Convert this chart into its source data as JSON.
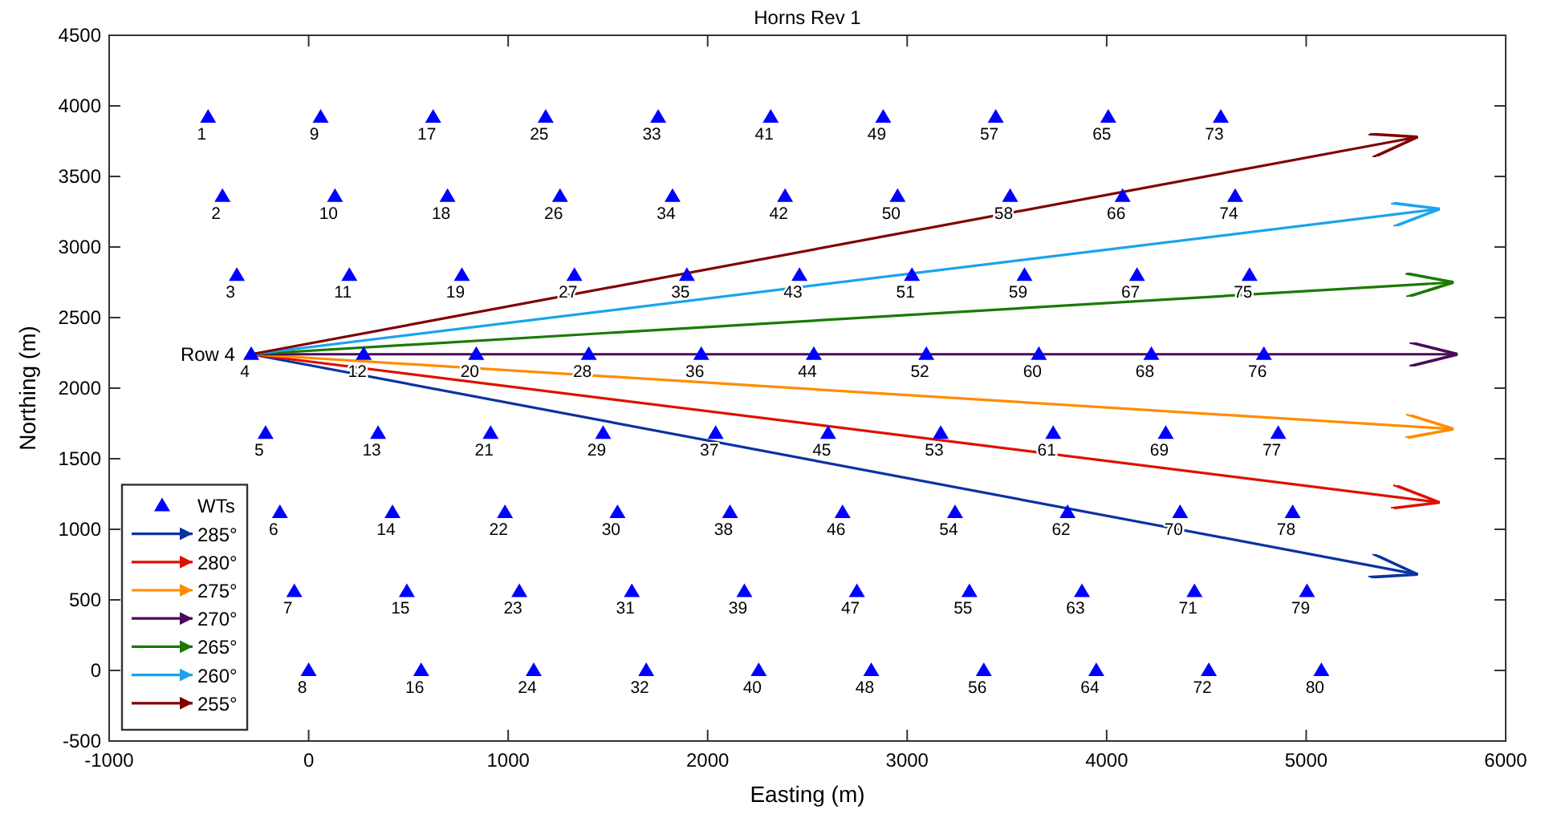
{
  "chart_data": {
    "type": "scatter",
    "title": "Horns Rev 1",
    "xlabel": "Easting (m)",
    "ylabel": "Northing (m)",
    "xlim": [
      -1000,
      6000
    ],
    "xticks": [
      -1000,
      0,
      1000,
      2000,
      3000,
      4000,
      5000,
      6000
    ],
    "ylim": [
      -500,
      4500
    ],
    "yticks": [
      -500,
      0,
      500,
      1000,
      1500,
      2000,
      2500,
      3000,
      3500,
      4000,
      4500
    ],
    "grid": false,
    "legend": "bottom left",
    "line_style": "solid",
    "series": [
      {
        "name": "WTs",
        "marker": "triangle",
        "color": "#0000ff",
        "x": [
          -504,
          -432,
          -360,
          -288,
          -216,
          -144,
          -72,
          0,
          60,
          132,
          204,
          276,
          348,
          420,
          492,
          564,
          624,
          696,
          768,
          840,
          912,
          984,
          1056,
          1128,
          1188,
          1260,
          1332,
          1404,
          1476,
          1548,
          1620,
          1692,
          1752,
          1824,
          1896,
          1968,
          2040,
          2112,
          2184,
          2256,
          2316,
          2388,
          2460,
          2532,
          2604,
          2676,
          2748,
          2820,
          2880,
          2952,
          3024,
          3096,
          3168,
          3240,
          3312,
          3384,
          3444,
          3516,
          3588,
          3660,
          3732,
          3804,
          3876,
          3948,
          4008,
          4080,
          4152,
          4224,
          4296,
          4368,
          4440,
          4512,
          4572,
          4644,
          4716,
          4788,
          4860,
          4932,
          5004,
          5076
        ],
        "values": [
          3920,
          3360,
          2800,
          2240,
          1680,
          1120,
          560,
          0,
          3920,
          3360,
          2800,
          2240,
          1680,
          1120,
          560,
          0,
          3920,
          3360,
          2800,
          2240,
          1680,
          1120,
          560,
          0,
          3920,
          3360,
          2800,
          2240,
          1680,
          1120,
          560,
          0,
          3920,
          3360,
          2800,
          2240,
          1680,
          1120,
          560,
          0,
          3920,
          3360,
          2800,
          2240,
          1680,
          1120,
          560,
          0,
          3920,
          3360,
          2800,
          2240,
          1680,
          1120,
          560,
          0,
          3920,
          3360,
          2800,
          2240,
          1680,
          1120,
          560,
          0,
          3920,
          3360,
          2800,
          2240,
          1680,
          1120,
          560,
          0,
          3920,
          3360,
          2800,
          2240,
          1680,
          1120,
          560,
          0
        ]
      },
      {
        "name": "285°",
        "type": "line",
        "color": "#0a32a0",
        "x": [
          -288,
          5560
        ],
        "values": [
          2240,
          680
        ]
      },
      {
        "name": "280°",
        "type": "line",
        "color": "#dd1100",
        "x": [
          -288,
          5670
        ],
        "values": [
          2240,
          1190
        ]
      },
      {
        "name": "275°",
        "type": "line",
        "color": "#ff8c00",
        "x": [
          -288,
          5740
        ],
        "values": [
          2240,
          1710
        ]
      },
      {
        "name": "270°",
        "type": "line",
        "color": "#4a0a5a",
        "x": [
          -288,
          5760
        ],
        "values": [
          2240,
          2240
        ]
      },
      {
        "name": "265°",
        "type": "line",
        "color": "#1a7a00",
        "x": [
          -288,
          5740
        ],
        "values": [
          2240,
          2750
        ]
      },
      {
        "name": "260°",
        "type": "line",
        "color": "#1aa3ee",
        "x": [
          -288,
          5670
        ],
        "values": [
          2240,
          3270
        ]
      },
      {
        "name": "255°",
        "type": "line",
        "color": "#800000",
        "x": [
          -288,
          5560
        ],
        "values": [
          2240,
          3780
        ]
      }
    ],
    "annotations": [
      "Row 4",
      {
        "text": "1",
        "x": -504,
        "y": 3920
      },
      {
        "text": "2",
        "x": -432,
        "y": 3360
      },
      {
        "text": "3",
        "x": -360,
        "y": 2800
      },
      {
        "text": "4",
        "x": -288,
        "y": 2240
      },
      {
        "text": "5",
        "x": -216,
        "y": 1680
      },
      {
        "text": "6",
        "x": -144,
        "y": 1120
      },
      {
        "text": "7",
        "x": -72,
        "y": 560
      },
      {
        "text": "8",
        "x": 0,
        "y": 0
      },
      {
        "text": "9",
        "x": 60,
        "y": 3920
      },
      {
        "text": "10",
        "x": 132,
        "y": 3360
      },
      {
        "text": "11",
        "x": 204,
        "y": 2800
      },
      {
        "text": "12",
        "x": 276,
        "y": 2240
      },
      {
        "text": "13",
        "x": 348,
        "y": 1680
      },
      {
        "text": "14",
        "x": 420,
        "y": 1120
      },
      {
        "text": "15",
        "x": 492,
        "y": 560
      },
      {
        "text": "16",
        "x": 564,
        "y": 0
      },
      {
        "text": "17",
        "x": 624,
        "y": 3920
      },
      {
        "text": "18",
        "x": 696,
        "y": 3360
      },
      {
        "text": "19",
        "x": 768,
        "y": 2800
      },
      {
        "text": "20",
        "x": 840,
        "y": 2240
      },
      {
        "text": "21",
        "x": 912,
        "y": 1680
      },
      {
        "text": "22",
        "x": 984,
        "y": 1120
      },
      {
        "text": "23",
        "x": 1056,
        "y": 560
      },
      {
        "text": "24",
        "x": 1128,
        "y": 0
      },
      {
        "text": "25",
        "x": 1188,
        "y": 3920
      },
      {
        "text": "26",
        "x": 1260,
        "y": 3360
      },
      {
        "text": "27",
        "x": 1332,
        "y": 2800
      },
      {
        "text": "28",
        "x": 1404,
        "y": 2240
      },
      {
        "text": "29",
        "x": 1476,
        "y": 1680
      },
      {
        "text": "30",
        "x": 1548,
        "y": 1120
      },
      {
        "text": "31",
        "x": 1620,
        "y": 560
      },
      {
        "text": "32",
        "x": 1692,
        "y": 0
      },
      {
        "text": "33",
        "x": 1752,
        "y": 3920
      },
      {
        "text": "34",
        "x": 1824,
        "y": 3360
      },
      {
        "text": "35",
        "x": 1896,
        "y": 2800
      },
      {
        "text": "36",
        "x": 1968,
        "y": 2240
      },
      {
        "text": "37",
        "x": 2040,
        "y": 1680
      },
      {
        "text": "38",
        "x": 2112,
        "y": 1120
      },
      {
        "text": "39",
        "x": 2184,
        "y": 560
      },
      {
        "text": "40",
        "x": 2256,
        "y": 0
      },
      {
        "text": "41",
        "x": 2316,
        "y": 3920
      },
      {
        "text": "42",
        "x": 2388,
        "y": 3360
      },
      {
        "text": "43",
        "x": 2460,
        "y": 2800
      },
      {
        "text": "44",
        "x": 2532,
        "y": 2240
      },
      {
        "text": "45",
        "x": 2604,
        "y": 1680
      },
      {
        "text": "46",
        "x": 2676,
        "y": 1120
      },
      {
        "text": "47",
        "x": 2748,
        "y": 560
      },
      {
        "text": "48",
        "x": 2820,
        "y": 0
      },
      {
        "text": "49",
        "x": 2880,
        "y": 3920
      },
      {
        "text": "50",
        "x": 2952,
        "y": 3360
      },
      {
        "text": "51",
        "x": 3024,
        "y": 2800
      },
      {
        "text": "52",
        "x": 3096,
        "y": 2240
      },
      {
        "text": "53",
        "x": 3168,
        "y": 1680
      },
      {
        "text": "54",
        "x": 3240,
        "y": 1120
      },
      {
        "text": "55",
        "x": 3312,
        "y": 560
      },
      {
        "text": "56",
        "x": 3384,
        "y": 0
      },
      {
        "text": "57",
        "x": 3444,
        "y": 3920
      },
      {
        "text": "58",
        "x": 3516,
        "y": 3360
      },
      {
        "text": "59",
        "x": 3588,
        "y": 2800
      },
      {
        "text": "60",
        "x": 3660,
        "y": 2240
      },
      {
        "text": "61",
        "x": 3732,
        "y": 1680
      },
      {
        "text": "62",
        "x": 3804,
        "y": 1120
      },
      {
        "text": "63",
        "x": 3876,
        "y": 560
      },
      {
        "text": "64",
        "x": 3948,
        "y": 0
      },
      {
        "text": "65",
        "x": 4008,
        "y": 3920
      },
      {
        "text": "66",
        "x": 4080,
        "y": 3360
      },
      {
        "text": "67",
        "x": 4152,
        "y": 2800
      },
      {
        "text": "68",
        "x": 4224,
        "y": 2240
      },
      {
        "text": "69",
        "x": 4296,
        "y": 1680
      },
      {
        "text": "70",
        "x": 4368,
        "y": 1120
      },
      {
        "text": "71",
        "x": 4440,
        "y": 560
      },
      {
        "text": "72",
        "x": 4512,
        "y": 0
      },
      {
        "text": "73",
        "x": 4572,
        "y": 3920
      },
      {
        "text": "74",
        "x": 4644,
        "y": 3360
      },
      {
        "text": "75",
        "x": 4716,
        "y": 2800
      },
      {
        "text": "76",
        "x": 4788,
        "y": 2240
      },
      {
        "text": "77",
        "x": 4860,
        "y": 1680
      },
      {
        "text": "78",
        "x": 4932,
        "y": 1120
      },
      {
        "text": "79",
        "x": 5004,
        "y": 560
      },
      {
        "text": "80",
        "x": 5076,
        "y": 0
      }
    ]
  }
}
